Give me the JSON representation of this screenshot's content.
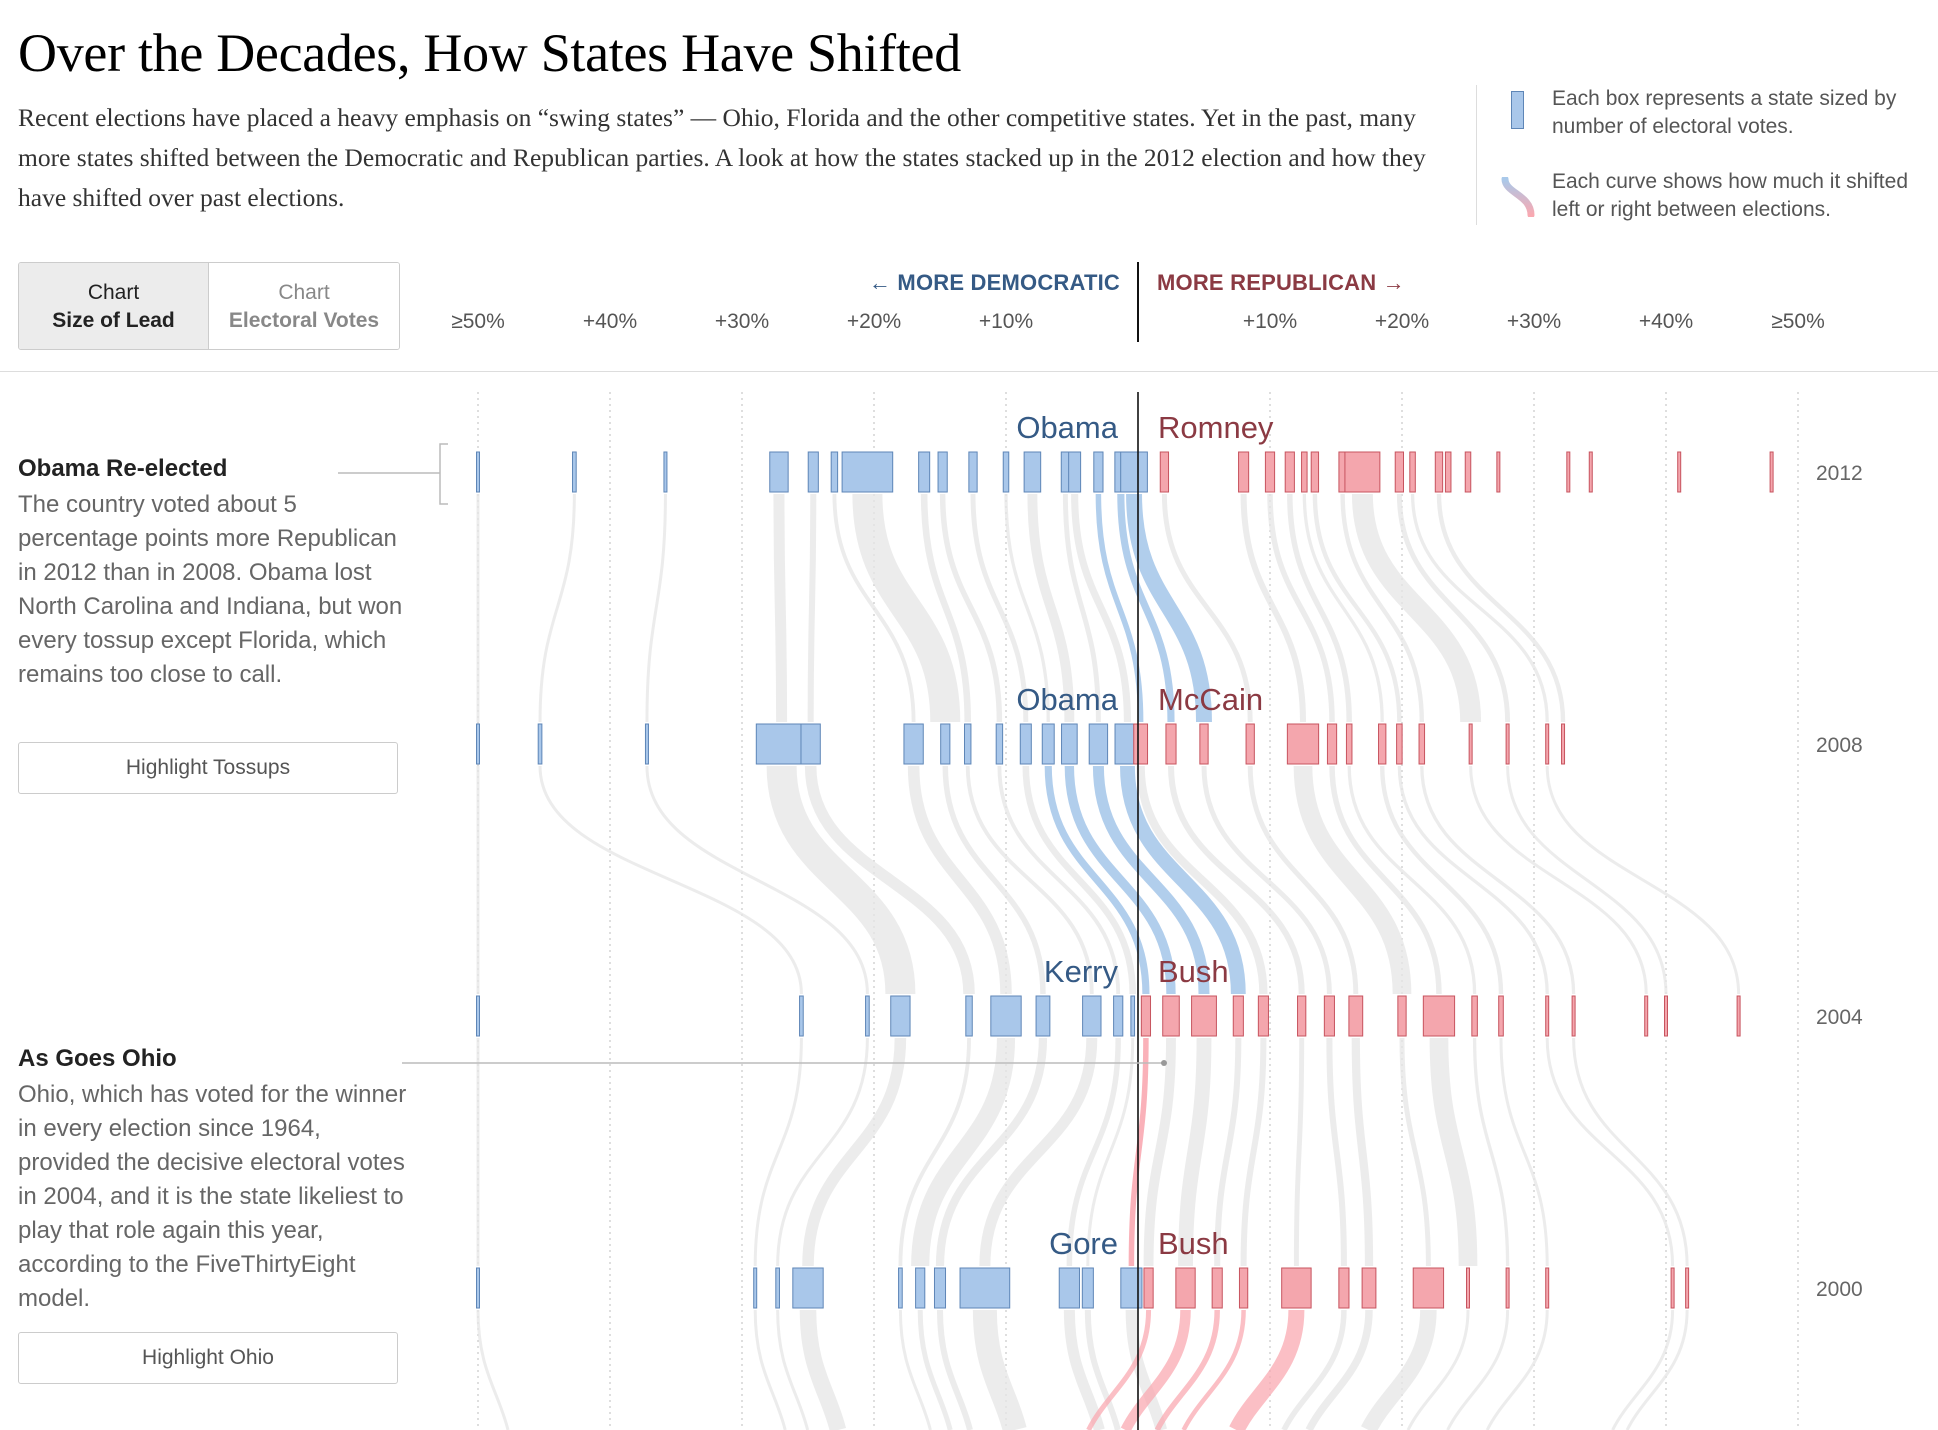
{
  "header": {
    "title": "Over the Decades, How States Have Shifted",
    "intro": "Recent elections have placed a heavy emphasis on “swing states” — Ohio, Florida and the other competitive states. Yet in the past, many more states shifted between the Democratic and Republican parties. A look at how the states stacked up in the 2012 election and how they have shifted over past elections."
  },
  "legend": {
    "box_text": "Each box represents a state sized by number of electoral votes.",
    "curve_text": "Each curve shows how much it shifted left or right between elections."
  },
  "toggle": {
    "lead_line1": "Chart",
    "lead_line2": "Size of Lead",
    "votes_line1": "Chart",
    "votes_line2": "Electoral Votes"
  },
  "axis": {
    "dem_label": "← MORE DEMOCRATIC",
    "rep_label": "MORE REPUBLICAN →"
  },
  "notes": [
    {
      "title": "Obama Re-elected",
      "text": "The country voted about 5 percentage points more Republican in 2012 than in 2008. Obama lost North Carolina and Indiana, but won every tossup except Florida, which remains too close to call.",
      "button": "Highlight Tossups"
    },
    {
      "title": "As Goes Ohio",
      "text": "Ohio, which has voted for the winner in every election since 1964, provided the decisive electoral votes in 2004, and it is the state likeliest to play that role again this year, according to the FiveThirtyEight model.",
      "button": "Highlight Ohio"
    }
  ],
  "colors": {
    "dem_fill": "#a9c7ea",
    "dem_stroke": "#5e86b7",
    "rep_fill": "#f4a6ad",
    "rep_stroke": "#c7545f",
    "dem_text": "#355a85",
    "rep_text": "#8b3a43",
    "curve_gray": "#e6e6e6",
    "curve_blue": "#a9c9ea",
    "curve_red": "#f9a9b1"
  },
  "chart_data": {
    "type": "scatter",
    "x_unit": "percentage-point lead",
    "xlim": [
      -50,
      50
    ],
    "ticks": [
      {
        "value": -50,
        "label": "≥50%"
      },
      {
        "value": -40,
        "label": "+40%"
      },
      {
        "value": -30,
        "label": "+30%"
      },
      {
        "value": -20,
        "label": "+20%"
      },
      {
        "value": -10,
        "label": "+10%"
      },
      {
        "value": 10,
        "label": "+10%"
      },
      {
        "value": 20,
        "label": "+20%"
      },
      {
        "value": 30,
        "label": "+30%"
      },
      {
        "value": 40,
        "label": "+40%"
      },
      {
        "value": 50,
        "label": "≥50%"
      }
    ],
    "grid": "dotted vertical lines at each tick",
    "elections": [
      {
        "year": "2012",
        "dem": "Obama",
        "rep": "Romney",
        "states": [
          {
            "margin": -50.0,
            "ev": 3
          },
          {
            "margin": -42.7,
            "ev": 4
          },
          {
            "margin": -35.8,
            "ev": 3
          },
          {
            "margin": -27.2,
            "ev": 20
          },
          {
            "margin": -24.6,
            "ev": 11
          },
          {
            "margin": -23.0,
            "ev": 7
          },
          {
            "margin": -20.5,
            "ev": 55
          },
          {
            "margin": -16.2,
            "ev": 12
          },
          {
            "margin": -14.8,
            "ev": 10
          },
          {
            "margin": -12.5,
            "ev": 9
          },
          {
            "margin": -10.0,
            "ev": 6
          },
          {
            "margin": -8.0,
            "ev": 18
          },
          {
            "margin": -5.5,
            "ev": 9
          },
          {
            "margin": -4.8,
            "ev": 13
          },
          {
            "margin": -3.0,
            "ev": 10
          },
          {
            "margin": -1.3,
            "ev": 13
          },
          {
            "margin": -0.3,
            "ev": 29
          },
          {
            "margin": 2.0,
            "ev": 9
          },
          {
            "margin": 8.0,
            "ev": 11
          },
          {
            "margin": 10.0,
            "ev": 10
          },
          {
            "margin": 11.5,
            "ev": 10
          },
          {
            "margin": 12.6,
            "ev": 6
          },
          {
            "margin": 13.4,
            "ev": 8
          },
          {
            "margin": 15.5,
            "ev": 8
          },
          {
            "margin": 17.0,
            "ev": 38
          },
          {
            "margin": 19.8,
            "ev": 9
          },
          {
            "margin": 20.8,
            "ev": 6
          },
          {
            "margin": 22.8,
            "ev": 8
          },
          {
            "margin": 23.5,
            "ev": 6
          },
          {
            "margin": 25.0,
            "ev": 6
          },
          {
            "margin": 27.3,
            "ev": 3
          },
          {
            "margin": 32.6,
            "ev": 3
          },
          {
            "margin": 34.3,
            "ev": 3
          },
          {
            "margin": 41.0,
            "ev": 3
          },
          {
            "margin": 48.0,
            "ev": 3
          }
        ]
      },
      {
        "year": "2008",
        "dem": "Obama",
        "rep": "McCain",
        "states": [
          {
            "margin": -50.0,
            "ev": 3
          },
          {
            "margin": -45.3,
            "ev": 4
          },
          {
            "margin": -37.2,
            "ev": 3
          },
          {
            "margin": -27.0,
            "ev": 55
          },
          {
            "margin": -24.8,
            "ev": 21
          },
          {
            "margin": -17.0,
            "ev": 21
          },
          {
            "margin": -14.6,
            "ev": 10
          },
          {
            "margin": -12.9,
            "ev": 7
          },
          {
            "margin": -10.5,
            "ev": 7
          },
          {
            "margin": -8.5,
            "ev": 12
          },
          {
            "margin": -6.8,
            "ev": 13
          },
          {
            "margin": -5.2,
            "ev": 17
          },
          {
            "margin": -3.0,
            "ev": 20
          },
          {
            "margin": -0.8,
            "ev": 27
          },
          {
            "margin": 0.2,
            "ev": 15
          },
          {
            "margin": 2.5,
            "ev": 11
          },
          {
            "margin": 5.0,
            "ev": 9
          },
          {
            "margin": 8.5,
            "ev": 9
          },
          {
            "margin": 12.5,
            "ev": 34
          },
          {
            "margin": 14.7,
            "ev": 10
          },
          {
            "margin": 16.0,
            "ev": 6
          },
          {
            "margin": 18.5,
            "ev": 8
          },
          {
            "margin": 19.8,
            "ev": 6
          },
          {
            "margin": 21.5,
            "ev": 6
          },
          {
            "margin": 25.2,
            "ev": 3
          },
          {
            "margin": 28.0,
            "ev": 3
          },
          {
            "margin": 31.0,
            "ev": 3
          },
          {
            "margin": 32.2,
            "ev": 3
          }
        ]
      },
      {
        "year": "2004",
        "dem": "Kerry",
        "rep": "Bush",
        "states": [
          {
            "margin": -50.0,
            "ev": 3
          },
          {
            "margin": -25.5,
            "ev": 4
          },
          {
            "margin": -20.5,
            "ev": 4
          },
          {
            "margin": -18.0,
            "ev": 21
          },
          {
            "margin": -12.8,
            "ev": 7
          },
          {
            "margin": -10.0,
            "ev": 33
          },
          {
            "margin": -7.2,
            "ev": 15
          },
          {
            "margin": -3.5,
            "ev": 20
          },
          {
            "margin": -1.5,
            "ev": 10
          },
          {
            "margin": -0.4,
            "ev": 4
          },
          {
            "margin": 0.6,
            "ev": 10
          },
          {
            "margin": 2.5,
            "ev": 18
          },
          {
            "margin": 5.0,
            "ev": 27
          },
          {
            "margin": 7.6,
            "ev": 11
          },
          {
            "margin": 9.5,
            "ev": 11
          },
          {
            "margin": 12.4,
            "ev": 9
          },
          {
            "margin": 14.5,
            "ev": 11
          },
          {
            "margin": 16.5,
            "ev": 15
          },
          {
            "margin": 20.0,
            "ev": 9
          },
          {
            "margin": 22.8,
            "ev": 34
          },
          {
            "margin": 25.5,
            "ev": 6
          },
          {
            "margin": 27.5,
            "ev": 5
          },
          {
            "margin": 31.0,
            "ev": 3
          },
          {
            "margin": 33.0,
            "ev": 3
          },
          {
            "margin": 38.5,
            "ev": 3
          },
          {
            "margin": 40.0,
            "ev": 3
          },
          {
            "margin": 45.5,
            "ev": 3
          }
        ]
      },
      {
        "year": "2000",
        "dem": "Gore",
        "rep": "Bush",
        "states": [
          {
            "margin": -50.0,
            "ev": 3
          },
          {
            "margin": -29.0,
            "ev": 3
          },
          {
            "margin": -27.3,
            "ev": 4
          },
          {
            "margin": -25.0,
            "ev": 33
          },
          {
            "margin": -18.0,
            "ev": 4
          },
          {
            "margin": -16.5,
            "ev": 10
          },
          {
            "margin": -15.0,
            "ev": 12
          },
          {
            "margin": -11.6,
            "ev": 54
          },
          {
            "margin": -5.2,
            "ev": 22
          },
          {
            "margin": -3.8,
            "ev": 12
          },
          {
            "margin": -0.5,
            "ev": 23
          },
          {
            "margin": 0.8,
            "ev": 10
          },
          {
            "margin": 3.6,
            "ev": 21
          },
          {
            "margin": 6.0,
            "ev": 11
          },
          {
            "margin": 8.0,
            "ev": 9
          },
          {
            "margin": 12.0,
            "ev": 32
          },
          {
            "margin": 15.6,
            "ev": 11
          },
          {
            "margin": 17.5,
            "ev": 15
          },
          {
            "margin": 22.0,
            "ev": 33
          },
          {
            "margin": 25.0,
            "ev": 3
          },
          {
            "margin": 28.0,
            "ev": 3
          },
          {
            "margin": 31.0,
            "ev": 3
          },
          {
            "margin": 40.5,
            "ev": 3
          },
          {
            "margin": 41.6,
            "ev": 3
          }
        ]
      }
    ]
  }
}
